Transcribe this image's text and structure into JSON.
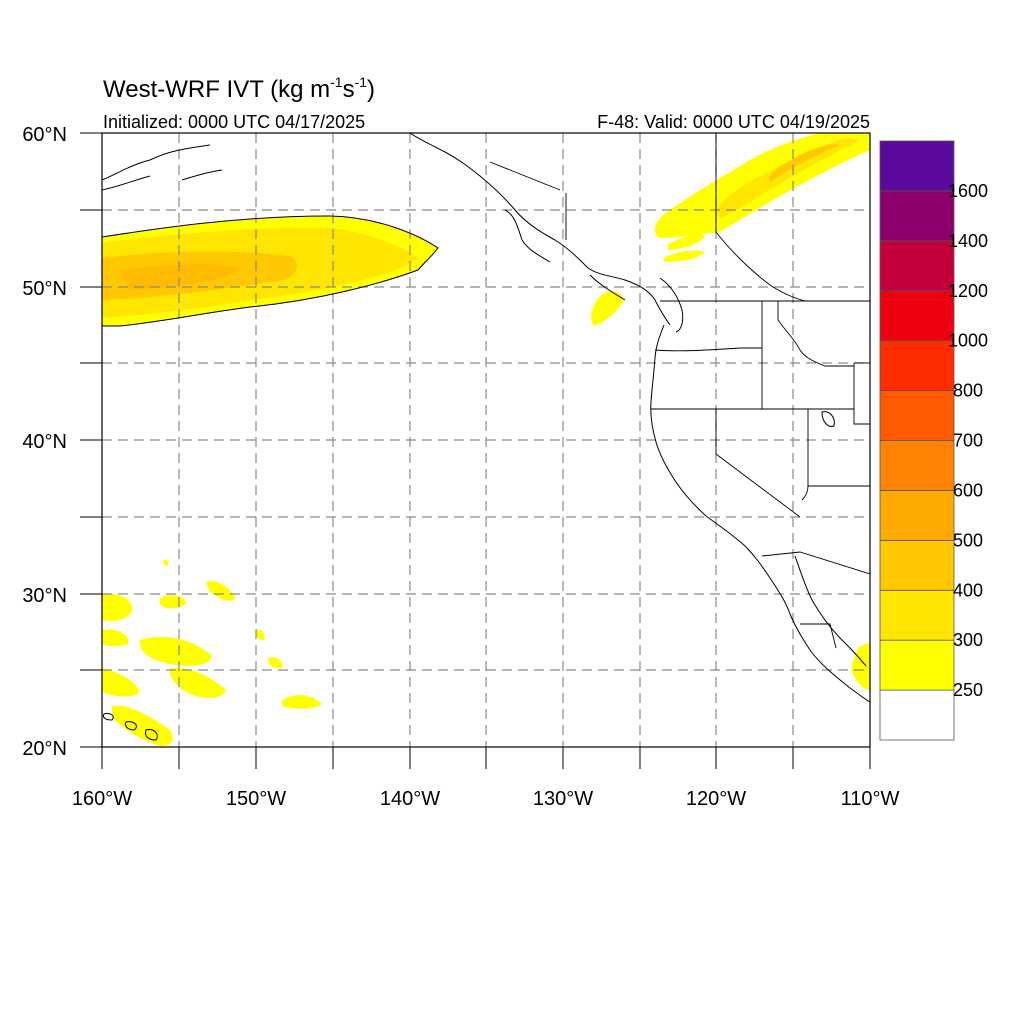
{
  "title": {
    "main": "West-WRF IVT (kg m",
    "unit_sup1": "-1",
    "unit_mid": "s",
    "unit_sup2": "-1",
    "unit_close": ")"
  },
  "subtitle_left": "Initialized: 0000 UTC 04/17/2025",
  "subtitle_right": "F-48: Valid: 0000 UTC 04/19/2025",
  "colors": {
    "coastline": "#000000",
    "gridline": "#8a8a8a",
    "colorbar": [
      "#ffffff",
      "#ffff00",
      "#ffe600",
      "#ffc800",
      "#ffaa00",
      "#ff8200",
      "#ff5a00",
      "#ff2d00",
      "#ee0011",
      "#c4003c",
      "#8b006b",
      "#5b0a9c"
    ]
  },
  "map": {
    "projection": "cylindrical-equidistant",
    "lon_range": [
      -160,
      -110
    ],
    "lat_range": [
      20,
      60
    ],
    "x_ticks": [
      "160°W",
      "150°W",
      "140°W",
      "130°W",
      "120°W",
      "110°W"
    ],
    "y_ticks": [
      "20°N",
      "30°N",
      "40°N",
      "50°N",
      "60°N"
    ],
    "grid": "dashed every 5 degrees"
  },
  "colorbar": {
    "labels": [
      "250",
      "300",
      "400",
      "500",
      "600",
      "700",
      "800",
      "1000",
      "1200",
      "1400",
      "1600"
    ],
    "levels": [
      250,
      300,
      400,
      500,
      600,
      700,
      800,
      1000,
      1200,
      1400,
      1600
    ]
  },
  "chart_data": {
    "type": "heatmap",
    "variable": "IVT",
    "max_level_seen": 500,
    "features": [
      {
        "region": "North Pacific plume",
        "lon": [
          -160,
          -138
        ],
        "lat": [
          48,
          54.5
        ],
        "ivt_min": 250,
        "ivt_max": 500
      },
      {
        "region": "Alberta/BC band",
        "lon": [
          -124,
          -110
        ],
        "lat": [
          52.5,
          60
        ],
        "ivt_min": 250,
        "ivt_max": 400
      },
      {
        "region": "Vancouver Island patch",
        "lon": [
          -128,
          -125
        ],
        "lat": [
          48.5,
          50
        ],
        "ivt_min": 250,
        "ivt_max": 300
      },
      {
        "region": "Subtropical patches near Hawaii",
        "lon": [
          -160,
          -144
        ],
        "lat": [
          20,
          30.5
        ],
        "ivt_min": 250,
        "ivt_max": 300
      },
      {
        "region": "Gulf of California edge",
        "lon": [
          -111,
          -110
        ],
        "lat": [
          23,
          26
        ],
        "ivt_min": 250,
        "ivt_max": 300
      }
    ]
  }
}
